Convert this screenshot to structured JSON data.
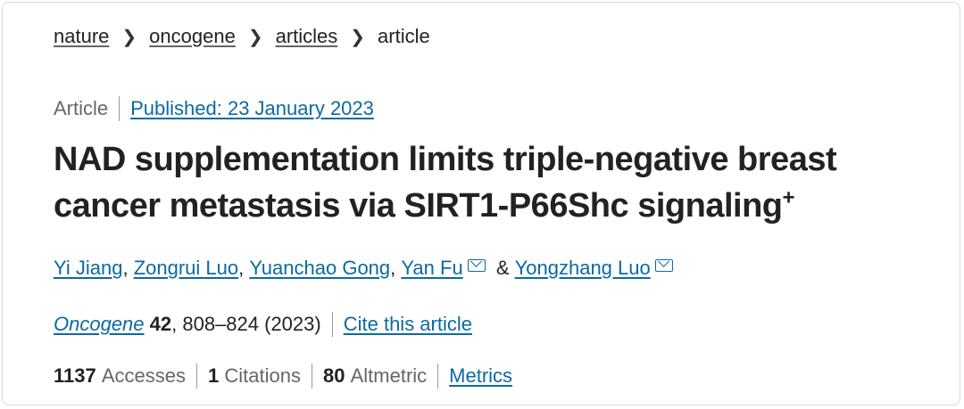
{
  "breadcrumb": [
    "nature",
    "oncogene",
    "articles",
    "article"
  ],
  "meta": {
    "type": "Article",
    "published": "Published: 23 January 2023"
  },
  "title": "NAD supplementation limits triple-negative breast cancer metastasis via SIRT1-P66Shc signaling",
  "title_mark": "+",
  "authors": [
    "Yi Jiang",
    "Zongrui Luo",
    "Yuanchao Gong",
    "Yan Fu",
    "Yongzhang Luo"
  ],
  "author_sep": ", ",
  "author_amp": " & ",
  "journal": {
    "name": "Oncogene",
    "volume": "42",
    "pages": ", 808–824 (2023)",
    "cite": "Cite this article"
  },
  "stats": {
    "accesses": "1137",
    "accesses_label": "Accesses",
    "citations": "1",
    "citations_label": "Citations",
    "altmetric": "80",
    "altmetric_label": "Altmetric",
    "metrics": "Metrics"
  },
  "colors": {
    "link": "#0b6aa2",
    "text": "#222222",
    "muted": "#666666"
  }
}
